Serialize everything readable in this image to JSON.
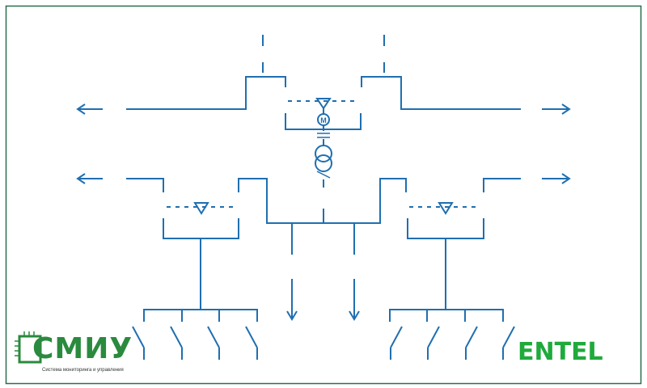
{
  "colors": {
    "border": "#2a6e4a",
    "lines": "#1f6fb0",
    "smiu_green": "#2a8a3e",
    "entel_green": "#1faa3c"
  },
  "diagram": {
    "motor_symbol": "M",
    "icons": [
      "motor-icon",
      "transformer-icon",
      "arrow-left-icon",
      "arrow-right-icon",
      "arrow-down-icon",
      "switch-icon",
      "triangle-icon"
    ]
  },
  "logos": {
    "smiu_text": "СМИУ",
    "smiu_subtitle": "Система мониторинга и управления",
    "entel_text": "ENTEL"
  }
}
